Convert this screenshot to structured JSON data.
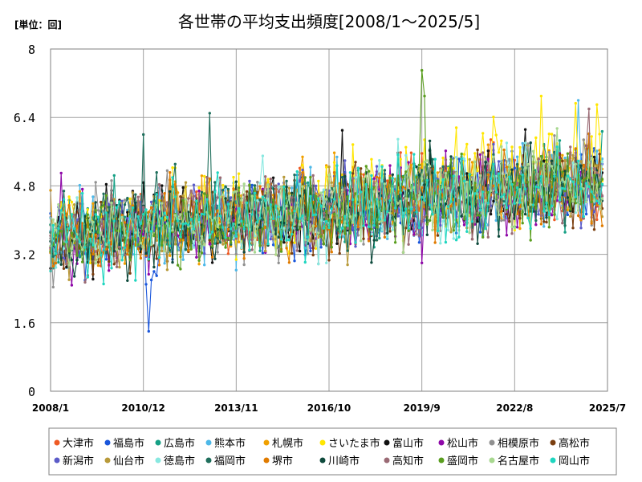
{
  "chart_data": {
    "type": "line",
    "title": "各世帯の平均支出頻度[2008/1～2025/5]",
    "unit_label": "[単位：回]",
    "xlabel": "",
    "ylabel": "",
    "ylim": [
      0,
      8
    ],
    "yticks": [
      "0",
      "1.6",
      "3.2",
      "4.8",
      "6.4",
      "8"
    ],
    "xticks": [
      "2008/1",
      "2010/12",
      "2013/11",
      "2016/10",
      "2019/9",
      "2022/8",
      "2025/7"
    ],
    "grid": true,
    "legend_position": "bottom",
    "x_start": "2008/1",
    "x_end": "2025/5",
    "series": [
      {
        "name": "大津市",
        "color": "#ee5a24",
        "level": [
          3.6,
          3.9,
          4.2,
          4.7,
          4.9
        ],
        "amplitude": 0.45,
        "anchors": []
      },
      {
        "name": "福島市",
        "color": "#1a56db",
        "level": [
          3.5,
          3.8,
          4.1,
          4.6,
          4.8
        ],
        "amplitude": 0.45,
        "anchors": [
          {
            "i": 36,
            "v": 2.5
          },
          {
            "i": 37,
            "v": 1.4
          },
          {
            "i": 38,
            "v": 2.6
          },
          {
            "i": 39,
            "v": 2.8
          },
          {
            "i": 40,
            "v": 2.7
          }
        ]
      },
      {
        "name": "広島市",
        "color": "#16a085",
        "level": [
          3.7,
          4.0,
          4.3,
          4.7,
          4.9
        ],
        "amplitude": 0.45,
        "anchors": []
      },
      {
        "name": "熊本市",
        "color": "#4db8e8",
        "level": [
          3.6,
          3.9,
          4.2,
          4.6,
          4.8
        ],
        "amplitude": 0.45,
        "anchors": [
          {
            "i": 199,
            "v": 6.8
          }
        ]
      },
      {
        "name": "札幌市",
        "color": "#f0a000",
        "level": [
          3.7,
          4.0,
          4.3,
          4.8,
          5.0
        ],
        "amplitude": 0.45,
        "anchors": []
      },
      {
        "name": "さいたま市",
        "color": "#ffe600",
        "level": [
          3.8,
          4.1,
          4.4,
          5.0,
          5.3
        ],
        "amplitude": 0.55,
        "anchors": [
          {
            "i": 185,
            "v": 6.9
          },
          {
            "i": 206,
            "v": 6.7
          }
        ]
      },
      {
        "name": "富山市",
        "color": "#111111",
        "level": [
          3.6,
          3.9,
          4.2,
          4.6,
          4.9
        ],
        "amplitude": 0.45,
        "anchors": [
          {
            "i": 110,
            "v": 6.1
          }
        ]
      },
      {
        "name": "松山市",
        "color": "#8e08a8",
        "level": [
          3.5,
          3.8,
          4.1,
          4.5,
          4.7
        ],
        "amplitude": 0.45,
        "anchors": [
          {
            "i": 4,
            "v": 5.1
          },
          {
            "i": 140,
            "v": 3.0
          }
        ]
      },
      {
        "name": "相模原市",
        "color": "#909090",
        "level": [
          3.6,
          3.9,
          4.2,
          4.6,
          4.8
        ],
        "amplitude": 0.45,
        "anchors": []
      },
      {
        "name": "高松市",
        "color": "#7b3f10",
        "level": [
          3.6,
          3.9,
          4.2,
          4.6,
          4.8
        ],
        "amplitude": 0.45,
        "anchors": []
      },
      {
        "name": "新潟市",
        "color": "#5b5bc8",
        "level": [
          3.6,
          3.9,
          4.2,
          4.6,
          4.8
        ],
        "amplitude": 0.45,
        "anchors": []
      },
      {
        "name": "仙台市",
        "color": "#b89a3a",
        "level": [
          3.6,
          3.9,
          4.2,
          4.6,
          4.8
        ],
        "amplitude": 0.45,
        "anchors": []
      },
      {
        "name": "徳島市",
        "color": "#88e8e0",
        "level": [
          3.6,
          3.9,
          4.2,
          4.6,
          4.8
        ],
        "amplitude": 0.45,
        "anchors": [
          {
            "i": 80,
            "v": 5.5
          },
          {
            "i": 104,
            "v": 3.0
          }
        ]
      },
      {
        "name": "福岡市",
        "color": "#1f6f5c",
        "level": [
          3.7,
          4.0,
          4.3,
          4.6,
          4.9
        ],
        "amplitude": 0.45,
        "anchors": [
          {
            "i": 35,
            "v": 6.0
          },
          {
            "i": 60,
            "v": 6.5
          }
        ]
      },
      {
        "name": "堺市",
        "color": "#e07b00",
        "level": [
          3.6,
          3.9,
          4.2,
          4.6,
          4.8
        ],
        "amplitude": 0.45,
        "anchors": []
      },
      {
        "name": "川崎市",
        "color": "#0e4a3c",
        "level": [
          3.6,
          3.9,
          4.2,
          4.6,
          4.8
        ],
        "amplitude": 0.45,
        "anchors": []
      },
      {
        "name": "高知市",
        "color": "#9a6a74",
        "level": [
          3.6,
          3.9,
          4.2,
          4.6,
          4.8
        ],
        "amplitude": 0.45,
        "anchors": [
          {
            "i": 203,
            "v": 6.6
          }
        ]
      },
      {
        "name": "盛岡市",
        "color": "#5a9e1f",
        "level": [
          3.6,
          3.9,
          4.2,
          4.6,
          4.8
        ],
        "amplitude": 0.45,
        "anchors": [
          {
            "i": 140,
            "v": 7.5
          },
          {
            "i": 141,
            "v": 6.9
          }
        ]
      },
      {
        "name": "名古屋市",
        "color": "#a8d890",
        "level": [
          3.6,
          3.9,
          4.2,
          4.7,
          5.0
        ],
        "amplitude": 0.45,
        "anchors": []
      },
      {
        "name": "岡山市",
        "color": "#1fd6c0",
        "level": [
          3.6,
          3.9,
          4.2,
          4.6,
          4.8
        ],
        "amplitude": 0.45,
        "anchors": []
      }
    ]
  }
}
